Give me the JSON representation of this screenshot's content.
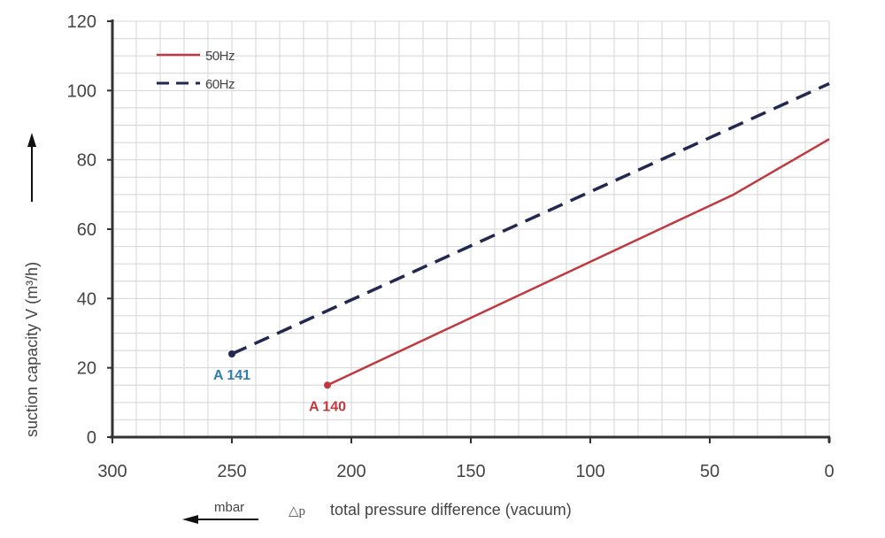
{
  "chart_data": {
    "type": "line",
    "title": "",
    "xlabel": "total pressure difference (vacuum)",
    "xlabel_symbol": "△p",
    "xlabel_unit": "mbar",
    "ylabel": "suction capacity V (m³/h)",
    "xlim": [
      300,
      0
    ],
    "ylim": [
      0,
      120
    ],
    "x_reversed": true,
    "x_ticks": [
      300,
      250,
      200,
      150,
      100,
      50,
      0
    ],
    "y_ticks": [
      0,
      20,
      40,
      60,
      80,
      100,
      120
    ],
    "x_minor_step": 10,
    "y_minor_step": 5,
    "grid": true,
    "legend_position": "top-left",
    "series": [
      {
        "name": "50Hz",
        "style": "solid",
        "color": "#c0393f",
        "x": [
          210,
          40,
          0
        ],
        "y": [
          15,
          70,
          86
        ],
        "end_label": "A 140",
        "end_label_color": "#c0393f"
      },
      {
        "name": "60Hz",
        "style": "dashed",
        "color": "#22284f",
        "x": [
          250,
          0
        ],
        "y": [
          24,
          102
        ],
        "end_label": "A 141",
        "end_label_color": "#2f7fa8"
      }
    ]
  }
}
